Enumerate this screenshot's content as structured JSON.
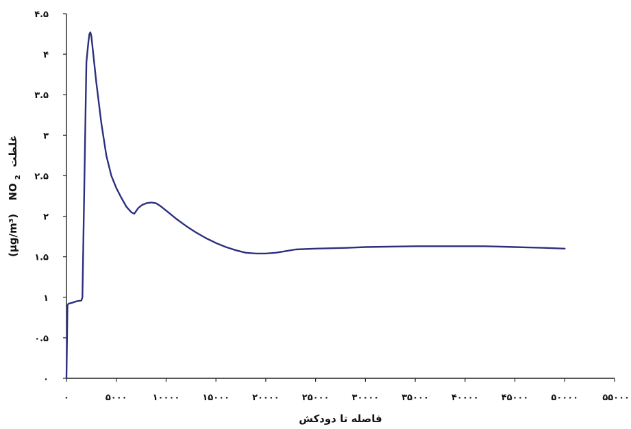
{
  "chart_data": {
    "type": "line",
    "title": "",
    "xlabel": "فاصله تا دودکش",
    "ylabel": {
      "unit": "(μg/m³)",
      "species": "NO",
      "subscript": "2",
      "word": "غلظت"
    },
    "xlim": [
      0,
      55000
    ],
    "ylim": [
      0,
      4.5
    ],
    "x_ticks": [
      {
        "value": 0,
        "label": "۰"
      },
      {
        "value": 5000,
        "label": "۵۰۰۰"
      },
      {
        "value": 10000,
        "label": "۱۰۰۰۰"
      },
      {
        "value": 15000,
        "label": "۱۵۰۰۰"
      },
      {
        "value": 20000,
        "label": "۲۰۰۰۰"
      },
      {
        "value": 25000,
        "label": "۲۵۰۰۰"
      },
      {
        "value": 30000,
        "label": "۳۰۰۰۰"
      },
      {
        "value": 35000,
        "label": "۳۵۰۰۰"
      },
      {
        "value": 40000,
        "label": "۴۰۰۰۰"
      },
      {
        "value": 45000,
        "label": "۴۵۰۰۰"
      },
      {
        "value": 50000,
        "label": "۵۰۰۰۰"
      },
      {
        "value": 55000,
        "label": "۵۵۰۰۰"
      }
    ],
    "y_ticks": [
      {
        "value": 0,
        "label": "۰"
      },
      {
        "value": 0.5,
        "label": "۰.۵"
      },
      {
        "value": 1,
        "label": "۱"
      },
      {
        "value": 1.5,
        "label": "۱.۵"
      },
      {
        "value": 2,
        "label": "۲"
      },
      {
        "value": 2.5,
        "label": "۲.۵"
      },
      {
        "value": 3,
        "label": "۳"
      },
      {
        "value": 3.5,
        "label": "۳.۵"
      },
      {
        "value": 4,
        "label": "۴"
      },
      {
        "value": 4.5,
        "label": "۴.۵"
      }
    ],
    "grid": false,
    "series": [
      {
        "color": "#2b2f7e",
        "points": [
          [
            0,
            0
          ],
          [
            100,
            0.9
          ],
          [
            200,
            0.92
          ],
          [
            500,
            0.93
          ],
          [
            1000,
            0.95
          ],
          [
            1500,
            0.96
          ],
          [
            1600,
            1.0
          ],
          [
            2000,
            3.9
          ],
          [
            2200,
            4.15
          ],
          [
            2300,
            4.25
          ],
          [
            2400,
            4.27
          ],
          [
            2500,
            4.22
          ],
          [
            3000,
            3.65
          ],
          [
            3500,
            3.15
          ],
          [
            4000,
            2.75
          ],
          [
            4500,
            2.5
          ],
          [
            5000,
            2.35
          ],
          [
            5500,
            2.23
          ],
          [
            6000,
            2.12
          ],
          [
            6500,
            2.05
          ],
          [
            6800,
            2.03
          ],
          [
            7200,
            2.1
          ],
          [
            7600,
            2.14
          ],
          [
            8000,
            2.16
          ],
          [
            8500,
            2.17
          ],
          [
            9000,
            2.16
          ],
          [
            9500,
            2.12
          ],
          [
            10000,
            2.07
          ],
          [
            11000,
            1.97
          ],
          [
            12000,
            1.88
          ],
          [
            13000,
            1.8
          ],
          [
            14000,
            1.73
          ],
          [
            15000,
            1.67
          ],
          [
            16000,
            1.62
          ],
          [
            17000,
            1.58
          ],
          [
            18000,
            1.55
          ],
          [
            19000,
            1.54
          ],
          [
            20000,
            1.54
          ],
          [
            21000,
            1.55
          ],
          [
            22000,
            1.57
          ],
          [
            23000,
            1.59
          ],
          [
            25000,
            1.6
          ],
          [
            28000,
            1.61
          ],
          [
            30000,
            1.62
          ],
          [
            35000,
            1.63
          ],
          [
            38000,
            1.63
          ],
          [
            40000,
            1.63
          ],
          [
            42000,
            1.63
          ],
          [
            45000,
            1.62
          ],
          [
            48000,
            1.61
          ],
          [
            50000,
            1.6
          ]
        ]
      }
    ]
  }
}
